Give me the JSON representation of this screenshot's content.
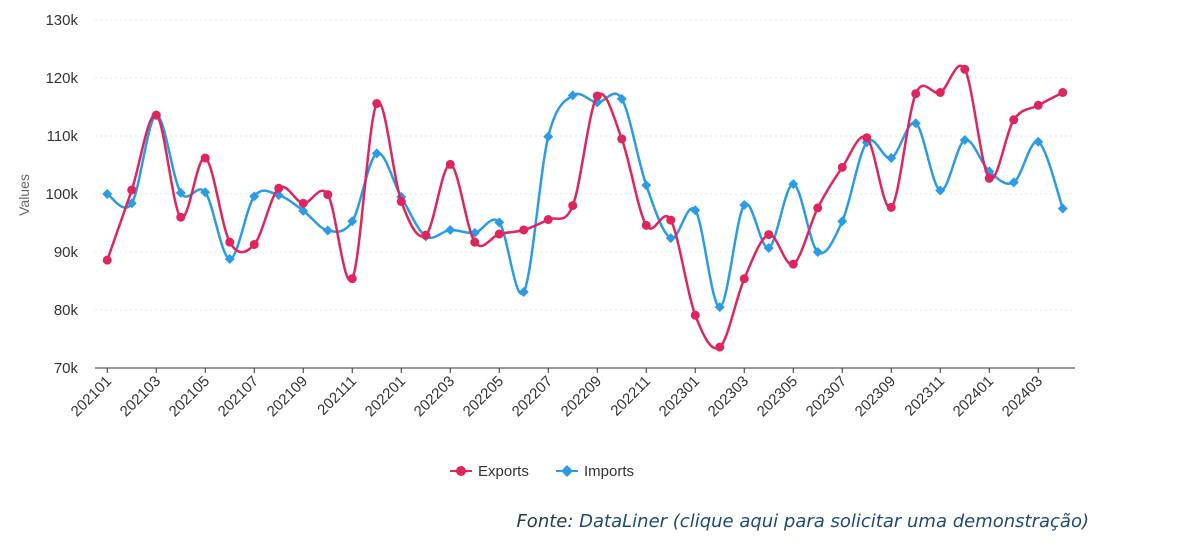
{
  "chart_data": {
    "type": "line",
    "title": "",
    "xlabel": "",
    "ylabel": "Values",
    "ylim": [
      70000,
      130000
    ],
    "yticks": [
      70000,
      80000,
      90000,
      100000,
      110000,
      120000,
      130000
    ],
    "ytick_labels": [
      "70k",
      "80k",
      "90k",
      "100k",
      "110k",
      "120k",
      "130k"
    ],
    "categories": [
      "202101",
      "202102",
      "202103",
      "202104",
      "202105",
      "202106",
      "202107",
      "202108",
      "202109",
      "202110",
      "202111",
      "202112",
      "202201",
      "202202",
      "202203",
      "202204",
      "202205",
      "202206",
      "202207",
      "202208",
      "202209",
      "202210",
      "202211",
      "202212",
      "202301",
      "202302",
      "202303",
      "202304",
      "202305",
      "202306",
      "202307",
      "202308",
      "202309",
      "202310",
      "202311",
      "202312",
      "202401",
      "202402",
      "202403",
      "202404"
    ],
    "xtick_labels": [
      "202101",
      "202103",
      "202105",
      "202107",
      "202109",
      "202111",
      "202201",
      "202203",
      "202205",
      "202207",
      "202209",
      "202211",
      "202301",
      "202303",
      "202305",
      "202307",
      "202309",
      "202311",
      "202401",
      "202403"
    ],
    "grid": true,
    "legend_position": "bottom-center",
    "series": [
      {
        "name": "Exports",
        "color": "#e0245e",
        "marker": "circle",
        "values": [
          88600,
          100700,
          113600,
          96000,
          106200,
          91700,
          91300,
          101000,
          98400,
          99900,
          85400,
          115600,
          98700,
          92900,
          105100,
          91700,
          93100,
          93800,
          95600,
          98000,
          116900,
          109500,
          94600,
          95500,
          79100,
          73600,
          85400,
          93000,
          87900,
          97600,
          104600,
          109700,
          97700,
          117300,
          117500,
          121500,
          102700,
          112800,
          115300,
          117500
        ]
      },
      {
        "name": "Imports",
        "color": "#2b9be6",
        "marker": "diamond",
        "values": [
          100000,
          98400,
          113600,
          100200,
          100300,
          88800,
          99600,
          99800,
          97100,
          93700,
          95300,
          107000,
          99500,
          92700,
          93800,
          93300,
          95100,
          83100,
          109900,
          117000,
          115800,
          116400,
          101500,
          92400,
          97200,
          80500,
          98100,
          90700,
          101700,
          90000,
          95300,
          108900,
          106200,
          112200,
          100600,
          109300,
          103900,
          102000,
          109000,
          97500
        ]
      }
    ]
  },
  "source": {
    "prefix": "Fonte: ",
    "link_text": "DataLiner (clique aqui para solicitar uma demonstração)"
  }
}
